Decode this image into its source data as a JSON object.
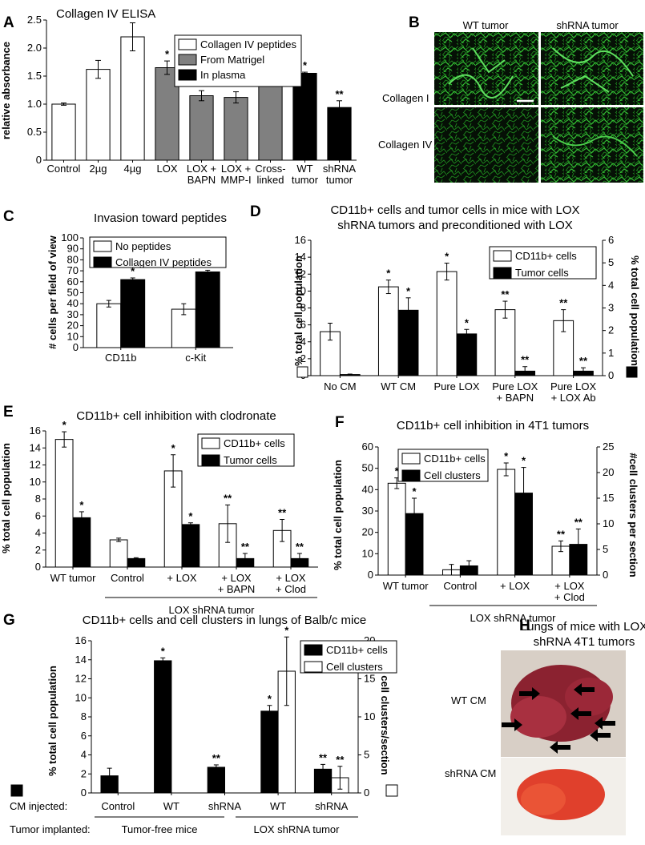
{
  "panels": {
    "A": {
      "letter": "A"
    },
    "B": {
      "letter": "B",
      "col_labels": [
        "WT tumor",
        "shRNA tumor"
      ],
      "row_labels": [
        "Collagen I",
        "Collagen IV"
      ]
    },
    "C": {
      "letter": "C"
    },
    "D": {
      "letter": "D"
    },
    "E": {
      "letter": "E",
      "group_label": "LOX shRNA tumor"
    },
    "F": {
      "letter": "F",
      "group_label": "LOX shRNA tumor"
    },
    "G": {
      "letter": "G",
      "row1_label": "CM injected:",
      "row2_label": "Tumor implanted:",
      "group1": "Tumor-free mice",
      "group2": "LOX shRNA tumor"
    },
    "H": {
      "letter": "H",
      "title_lines": [
        "Lungs of mice with LOX",
        "shRNA 4T1 tumors"
      ],
      "photo_labels": [
        "WT CM",
        "shRNA CM"
      ]
    }
  },
  "chart_data": [
    {
      "id": "A",
      "type": "bar",
      "title": "Collagen IV ELISA",
      "ylabel": "relative absorbance",
      "ylim": [
        0,
        2.5
      ],
      "yticks": [
        0,
        0.5,
        1.0,
        1.5,
        2.0,
        2.5
      ],
      "ytick_labels": [
        "0",
        "0.5",
        "1.0",
        "1.5",
        "2.0",
        "2.5"
      ],
      "categories": [
        [
          "Control"
        ],
        [
          "2µg"
        ],
        [
          "4µg"
        ],
        [
          "LOX"
        ],
        [
          "LOX +",
          "BAPN"
        ],
        [
          "LOX +",
          "MMP-I"
        ],
        [
          "Cross-",
          "linked"
        ],
        [
          "WT",
          "tumor"
        ],
        [
          "shRNA",
          "tumor"
        ]
      ],
      "values": [
        1.0,
        1.62,
        2.2,
        1.65,
        1.15,
        1.12,
        1.7,
        1.55,
        0.94
      ],
      "errors": [
        0.02,
        0.16,
        0.25,
        0.12,
        0.09,
        0.1,
        0.18,
        0.02,
        0.12
      ],
      "colors": [
        "#ffffff",
        "#ffffff",
        "#ffffff",
        "#808080",
        "#808080",
        "#808080",
        "#808080",
        "#000000",
        "#000000"
      ],
      "stars": [
        "",
        "",
        "",
        "*",
        "**",
        "**",
        "*",
        "*",
        "**"
      ],
      "legend": [
        {
          "name": "Collagen IV peptides",
          "color": "#ffffff"
        },
        {
          "name": "From Matrigel",
          "color": "#808080"
        },
        {
          "name": "In plasma",
          "color": "#000000"
        }
      ],
      "legend_position": "top-right",
      "grid": false
    },
    {
      "id": "C",
      "type": "bar",
      "title": "Invasion toward peptides",
      "ylabel": "# cells per field of view",
      "ylim": [
        0,
        100
      ],
      "yticks": [
        0,
        10,
        20,
        30,
        40,
        50,
        60,
        70,
        80,
        90,
        100
      ],
      "ytick_labels": [
        "0",
        "10",
        "20",
        "30",
        "40",
        "50",
        "60",
        "70",
        "80",
        "90",
        "100"
      ],
      "categories": [
        [
          "CD11b"
        ],
        [
          "c-Kit"
        ]
      ],
      "series": [
        {
          "name": "No peptides",
          "color": "#ffffff",
          "values": [
            40,
            35
          ],
          "errors": [
            3,
            5
          ],
          "stars": [
            "",
            ""
          ]
        },
        {
          "name": "Collagen IV peptides",
          "color": "#000000",
          "values": [
            62,
            69
          ],
          "errors": [
            1.5,
            1.5
          ],
          "stars": [
            "*",
            "*"
          ]
        }
      ],
      "legend_position": "top-left",
      "grid": false
    },
    {
      "id": "D",
      "type": "bar",
      "title": "CD11b+ cells and tumor cells in mice with LOX",
      "subtitle": "shRNA tumors and preconditioned with LOX",
      "ylabel": "% total cell population",
      "ylabel_right": "% total cell population",
      "ylim": [
        0,
        16
      ],
      "yticks": [
        0,
        2,
        4,
        6,
        8,
        10,
        12,
        14,
        16
      ],
      "ytick_labels": [
        "0",
        "2",
        "4",
        "6",
        "8",
        "10",
        "12",
        "14",
        "16"
      ],
      "ylim_right": [
        0,
        6
      ],
      "yticks_right": [
        0,
        1,
        2,
        3,
        4,
        5,
        6
      ],
      "ytick_labels_right": [
        "0",
        "1",
        "2",
        "3",
        "4",
        "5",
        "6"
      ],
      "categories": [
        [
          "No CM"
        ],
        [
          "WT CM"
        ],
        [
          "Pure LOX"
        ],
        [
          "Pure LOX",
          "+ BAPN"
        ],
        [
          "Pure LOX",
          "+ LOX Ab"
        ]
      ],
      "series": [
        {
          "name": "CD11b+ cells",
          "color": "#ffffff",
          "axis": "left",
          "values": [
            5.2,
            10.5,
            12.3,
            7.8,
            6.5
          ],
          "errors": [
            1.0,
            0.8,
            1.0,
            1.0,
            1.3
          ],
          "stars": [
            "",
            "*",
            "*",
            "**",
            "**"
          ]
        },
        {
          "name": "Tumor cells",
          "color": "#000000",
          "axis": "right",
          "values": [
            0.05,
            2.9,
            1.85,
            0.2,
            0.2
          ],
          "errors": [
            0.02,
            0.55,
            0.2,
            0.2,
            0.15
          ],
          "stars": [
            "",
            "*",
            "*",
            "**",
            "**"
          ]
        }
      ],
      "legend_position": "top-right",
      "grid": false
    },
    {
      "id": "E",
      "type": "bar",
      "title": "CD11b+ cell inhibition with clodronate",
      "ylabel": "% total cell population",
      "ylim": [
        0,
        16
      ],
      "yticks": [
        0,
        2,
        4,
        6,
        8,
        10,
        12,
        14,
        16
      ],
      "ytick_labels": [
        "0",
        "2",
        "4",
        "6",
        "8",
        "10",
        "12",
        "14",
        "16"
      ],
      "categories": [
        [
          "WT tumor"
        ],
        [
          "Control"
        ],
        [
          "+ LOX"
        ],
        [
          "+ LOX",
          "+ BAPN"
        ],
        [
          "+ LOX",
          "+ Clod"
        ]
      ],
      "series": [
        {
          "name": "CD11b+ cells",
          "color": "#ffffff",
          "values": [
            15.0,
            3.2,
            11.3,
            5.1,
            4.3
          ],
          "errors": [
            0.9,
            0.2,
            1.9,
            2.2,
            1.3
          ],
          "stars": [
            "*",
            "",
            "*",
            "**",
            "**"
          ]
        },
        {
          "name": "Tumor cells",
          "color": "#000000",
          "values": [
            5.8,
            1.0,
            5.0,
            1.0,
            1.0
          ],
          "errors": [
            0.7,
            0.1,
            0.2,
            0.6,
            0.6
          ],
          "stars": [
            "*",
            "",
            "*",
            "**",
            "**"
          ]
        }
      ],
      "legend_position": "top-right",
      "grid": false
    },
    {
      "id": "F",
      "type": "bar",
      "title": "CD11b+ cell inhibition in 4T1 tumors",
      "ylabel": "% total cell population",
      "ylabel_right": "#cell clusters per section",
      "ylim": [
        0,
        60
      ],
      "yticks": [
        0,
        10,
        20,
        30,
        40,
        50,
        60
      ],
      "ytick_labels": [
        "0",
        "10",
        "20",
        "30",
        "40",
        "50",
        "60"
      ],
      "ylim_right": [
        0,
        25
      ],
      "yticks_right": [
        0,
        5,
        10,
        15,
        20,
        25
      ],
      "ytick_labels_right": [
        "0",
        "5",
        "10",
        "15",
        "20",
        "25"
      ],
      "categories": [
        [
          "WT tumor"
        ],
        [
          "Control"
        ],
        [
          "+ LOX"
        ],
        [
          "+ LOX",
          "+ Clod"
        ]
      ],
      "series": [
        {
          "name": "CD11b+ cells",
          "color": "#ffffff",
          "axis": "left",
          "values": [
            43,
            2.5,
            49.5,
            13.5
          ],
          "errors": [
            2.5,
            2.5,
            3,
            2.5
          ],
          "stars": [
            "*",
            "",
            "*",
            "**"
          ]
        },
        {
          "name": "Cell clusters",
          "color": "#000000",
          "axis": "right",
          "values": [
            12,
            1.8,
            16,
            6
          ],
          "errors": [
            3,
            1,
            5,
            3
          ],
          "stars": [
            "*",
            "",
            "*",
            "**"
          ]
        }
      ],
      "legend_position": "top-left",
      "grid": false
    },
    {
      "id": "G",
      "type": "bar",
      "title": "CD11b+ cells and cell clusters in lungs of Balb/c mice",
      "ylabel": "% total cell population",
      "ylabel_right": "# cell clusters/section",
      "ylim": [
        0,
        16
      ],
      "yticks": [
        0,
        2,
        4,
        6,
        8,
        10,
        12,
        14,
        16
      ],
      "ytick_labels": [
        "0",
        "2",
        "4",
        "6",
        "8",
        "10",
        "12",
        "14",
        "16"
      ],
      "ylim_right": [
        0,
        20
      ],
      "yticks_right": [
        0,
        5,
        10,
        15,
        20
      ],
      "ytick_labels_right": [
        "0",
        "5",
        "10",
        "15",
        "20"
      ],
      "categories": [
        [
          "Control"
        ],
        [
          "WT"
        ],
        [
          "shRNA"
        ],
        [
          "WT"
        ],
        [
          "shRNA"
        ]
      ],
      "series": [
        {
          "name": "CD11b+ cells",
          "color": "#000000",
          "axis": "left",
          "values": [
            1.8,
            13.9,
            2.7,
            8.6,
            2.5
          ],
          "errors": [
            0.8,
            0.3,
            0.25,
            0.6,
            0.5
          ],
          "stars": [
            "",
            "*",
            "**",
            "*",
            "**"
          ]
        },
        {
          "name": "Cell clusters",
          "color": "#ffffff",
          "axis": "right",
          "values": [
            null,
            null,
            null,
            16,
            2
          ],
          "errors": [
            null,
            null,
            null,
            4.5,
            1.5
          ],
          "stars": [
            "",
            "",
            "",
            "*",
            "**"
          ]
        }
      ],
      "legend_position": "top-right",
      "grid": false
    }
  ]
}
